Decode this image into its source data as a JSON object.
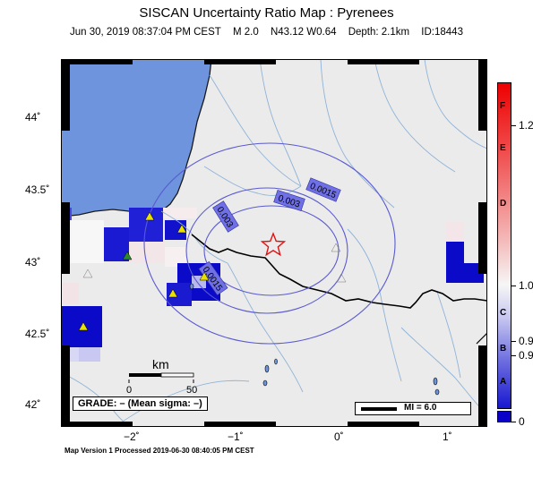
{
  "title": "SISCAN Uncertainty Ratio Map : Pyrenees",
  "subtitle": {
    "datetime": "Jun 30, 2019 08:37:04 PM CEST",
    "magnitude": "M 2.0",
    "location": "N43.12 W0.64",
    "depth": "Depth: 2.1km",
    "id": "ID:18443"
  },
  "latitude_labels": [
    "44˚",
    "43.5˚",
    "43˚",
    "42.5˚",
    "42˚"
  ],
  "longitude_labels": [
    "−2˚",
    "−1˚",
    "0˚",
    "1˚"
  ],
  "contour_labels": [
    "0.0015",
    "0.003",
    "0.003",
    "0.0015"
  ],
  "scale_bar": {
    "unit": "km",
    "ticks": [
      "0",
      "50"
    ]
  },
  "grade_text": "GRADE: – (Mean sigma: –)",
  "mi_legend": "MI = 6.0",
  "colorbar": {
    "letters": [
      "F",
      "E",
      "D",
      "C",
      "B",
      "A"
    ],
    "values": [
      "1.2",
      "1.0",
      "0.9",
      "0.9",
      "0"
    ]
  },
  "footer": "Map Version 1 Processed 2019-06-30 08:40:05 PM CEST",
  "colors": {
    "sea": "#6d94dc",
    "land": "#ebebeb",
    "high_uncertainty": "#e00000",
    "low_uncertainty": "#0a00c8",
    "epicenter": "#e01010",
    "station": "#e8e000"
  }
}
